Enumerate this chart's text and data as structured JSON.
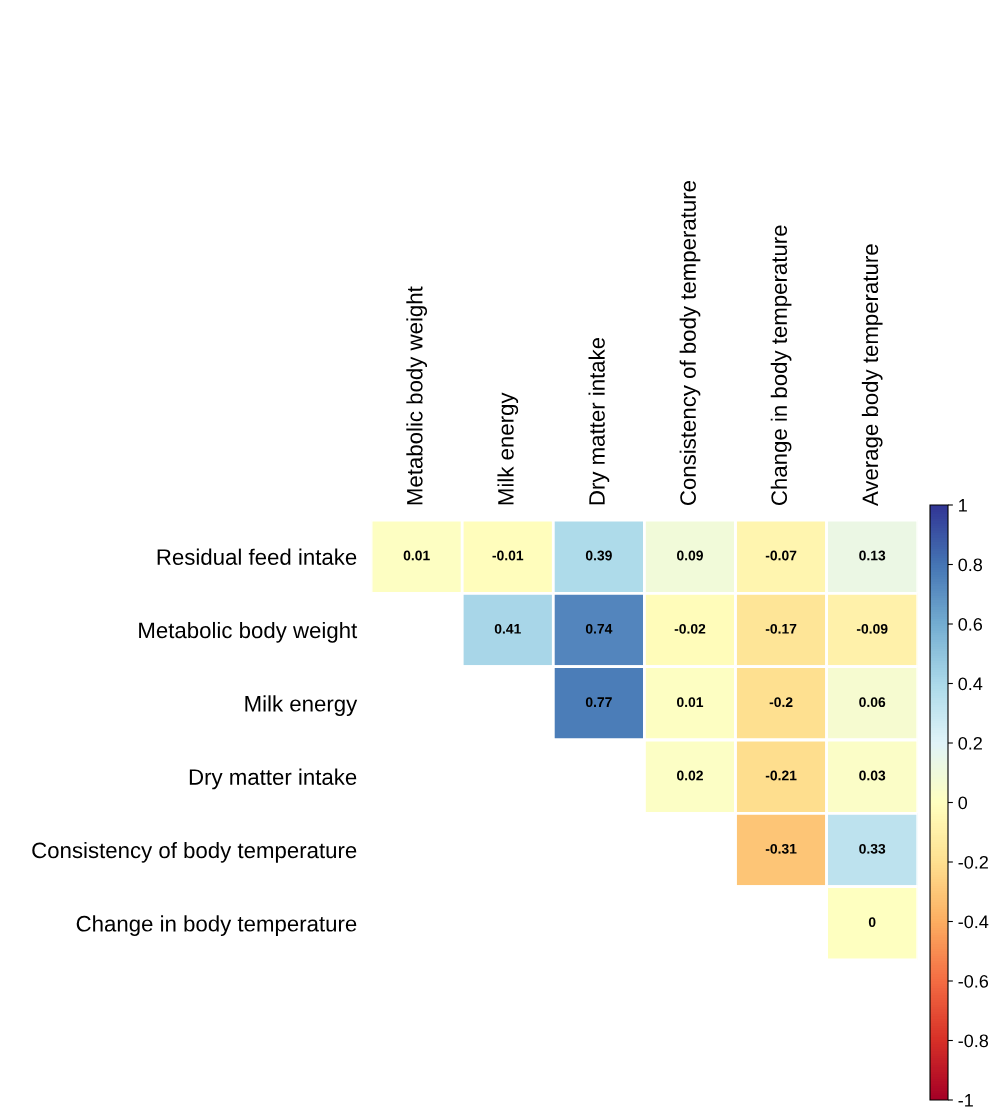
{
  "chart_data": {
    "type": "heatmap",
    "categories": [
      "Metabolic body weight",
      "Milk energy",
      "Dry matter intake",
      "Consistency of body temperature",
      "Change in body temperature",
      "Average body temperature"
    ],
    "y_categories": [
      "Residual feed intake",
      "Metabolic body weight",
      "Milk energy",
      "Dry matter intake",
      "Consistency of body temperature",
      "Change in body temperature"
    ],
    "cells": [
      [
        0.01,
        -0.01,
        0.39,
        0.09,
        -0.07,
        0.13
      ],
      [
        null,
        0.41,
        0.74,
        -0.02,
        -0.17,
        -0.09
      ],
      [
        null,
        null,
        0.77,
        0.01,
        -0.2,
        0.06
      ],
      [
        null,
        null,
        null,
        0.02,
        -0.21,
        0.03
      ],
      [
        null,
        null,
        null,
        null,
        -0.31,
        0.33
      ],
      [
        null,
        null,
        null,
        null,
        null,
        0
      ]
    ],
    "data_labels": true,
    "clim": [
      -1,
      1
    ],
    "cticks": [
      1,
      0.8,
      0.6,
      0.4,
      0.2,
      0,
      -0.2,
      -0.4,
      -0.6,
      -0.8,
      -1
    ]
  }
}
